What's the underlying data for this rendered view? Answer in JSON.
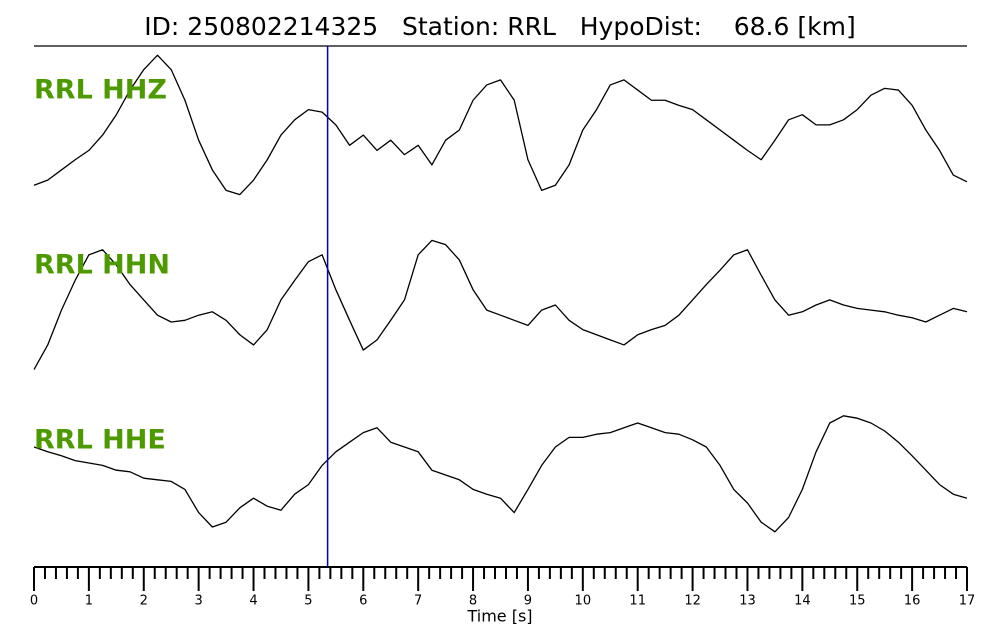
{
  "chart_data": {
    "type": "line",
    "title": "ID: 250802214325   Station: RRL   HypoDist:    68.6 [km]",
    "xlabel": "Time [s]",
    "xlim": [
      0,
      17
    ],
    "xticks": [
      0,
      1,
      2,
      3,
      4,
      5,
      6,
      7,
      8,
      9,
      10,
      11,
      12,
      13,
      14,
      15,
      16,
      17
    ],
    "xminor_ticks": [
      0.2,
      0.4,
      0.6,
      0.8,
      1.2,
      1.4,
      1.6,
      1.8,
      2.2,
      2.4,
      2.6,
      2.8,
      3.2,
      3.4,
      3.6,
      3.8,
      4.2,
      4.4,
      4.6,
      4.8,
      5.2,
      5.4,
      5.6,
      5.8,
      6.2,
      6.4,
      6.6,
      6.8,
      7.2,
      7.4,
      7.6,
      7.8,
      8.2,
      8.4,
      8.6,
      8.8,
      9.2,
      9.4,
      9.6,
      9.8,
      10.2,
      10.4,
      10.6,
      10.8,
      11.2,
      11.4,
      11.6,
      11.8,
      12.2,
      12.4,
      12.6,
      12.8,
      13.2,
      13.4,
      13.6,
      13.8,
      14.2,
      14.4,
      14.6,
      14.8,
      15.2,
      15.4,
      15.6,
      15.8,
      16.2,
      16.4,
      16.6,
      16.8
    ],
    "ylim": [
      -1,
      1
    ],
    "label_color": "#4c9a00",
    "pick": {
      "x": 5.35,
      "color": "#0000cc"
    },
    "x": [
      0,
      0.25,
      0.5,
      0.75,
      1,
      1.25,
      1.5,
      1.75,
      2,
      2.25,
      2.5,
      2.75,
      3,
      3.25,
      3.5,
      3.75,
      4,
      4.25,
      4.5,
      4.75,
      5,
      5.25,
      5.5,
      5.75,
      6,
      6.25,
      6.5,
      6.75,
      7,
      7.25,
      7.5,
      7.75,
      8,
      8.25,
      8.5,
      8.75,
      9,
      9.25,
      9.5,
      9.75,
      10,
      10.25,
      10.5,
      10.75,
      11,
      11.25,
      11.5,
      11.75,
      12,
      12.25,
      12.5,
      12.75,
      13,
      13.25,
      13.5,
      13.75,
      14,
      14.25,
      14.5,
      14.75,
      15,
      15.25,
      15.5,
      15.75,
      16,
      16.25,
      16.5,
      16.75,
      17
    ],
    "series": [
      {
        "name": "RRL HHZ",
        "color": "#000000",
        "values": [
          -0.65,
          -0.59,
          -0.47,
          -0.35,
          -0.24,
          -0.06,
          0.18,
          0.47,
          0.71,
          0.88,
          0.71,
          0.35,
          -0.12,
          -0.47,
          -0.71,
          -0.76,
          -0.59,
          -0.35,
          -0.06,
          0.12,
          0.24,
          0.21,
          0.06,
          -0.18,
          -0.06,
          -0.24,
          -0.12,
          -0.29,
          -0.18,
          -0.41,
          -0.12,
          0,
          0.35,
          0.53,
          0.59,
          0.35,
          -0.35,
          -0.71,
          -0.65,
          -0.41,
          0,
          0.24,
          0.53,
          0.59,
          0.47,
          0.35,
          0.35,
          0.29,
          0.24,
          0.12,
          0,
          -0.12,
          -0.24,
          -0.35,
          -0.12,
          0.12,
          0.18,
          0.06,
          0.06,
          0.12,
          0.24,
          0.41,
          0.49,
          0.47,
          0.29,
          0,
          -0.24,
          -0.53,
          -0.61
        ]
      },
      {
        "name": "RRL HHN",
        "color": "#000000",
        "values": [
          -0.76,
          -0.47,
          -0.06,
          0.29,
          0.59,
          0.65,
          0.47,
          0.24,
          0.06,
          -0.12,
          -0.2,
          -0.18,
          -0.12,
          -0.08,
          -0.18,
          -0.35,
          -0.47,
          -0.29,
          0.06,
          0.29,
          0.51,
          0.59,
          0.18,
          -0.18,
          -0.53,
          -0.41,
          -0.18,
          0.06,
          0.59,
          0.76,
          0.71,
          0.53,
          0.18,
          -0.06,
          -0.12,
          -0.18,
          -0.24,
          -0.06,
          0,
          -0.18,
          -0.29,
          -0.35,
          -0.41,
          -0.47,
          -0.35,
          -0.29,
          -0.24,
          -0.12,
          0.06,
          0.24,
          0.41,
          0.59,
          0.65,
          0.35,
          0.06,
          -0.12,
          -0.08,
          0,
          0.06,
          0,
          -0.04,
          -0.06,
          -0.08,
          -0.12,
          -0.15,
          -0.2,
          -0.12,
          -0.04,
          -0.08
        ]
      },
      {
        "name": "RRL HHE",
        "color": "#000000",
        "values": [
          0.35,
          0.29,
          0.24,
          0.18,
          0.15,
          0.12,
          0.06,
          0.04,
          -0.04,
          -0.06,
          -0.08,
          -0.18,
          -0.47,
          -0.65,
          -0.59,
          -0.41,
          -0.29,
          -0.39,
          -0.44,
          -0.24,
          -0.12,
          0.12,
          0.29,
          0.41,
          0.53,
          0.59,
          0.41,
          0.35,
          0.29,
          0.06,
          0,
          -0.06,
          -0.18,
          -0.24,
          -0.29,
          -0.47,
          -0.18,
          0.12,
          0.35,
          0.47,
          0.47,
          0.51,
          0.53,
          0.59,
          0.65,
          0.59,
          0.53,
          0.51,
          0.44,
          0.35,
          0.12,
          -0.18,
          -0.35,
          -0.59,
          -0.71,
          -0.53,
          -0.18,
          0.29,
          0.65,
          0.74,
          0.71,
          0.65,
          0.55,
          0.41,
          0.24,
          0.06,
          -0.12,
          -0.24,
          -0.29
        ]
      }
    ]
  }
}
